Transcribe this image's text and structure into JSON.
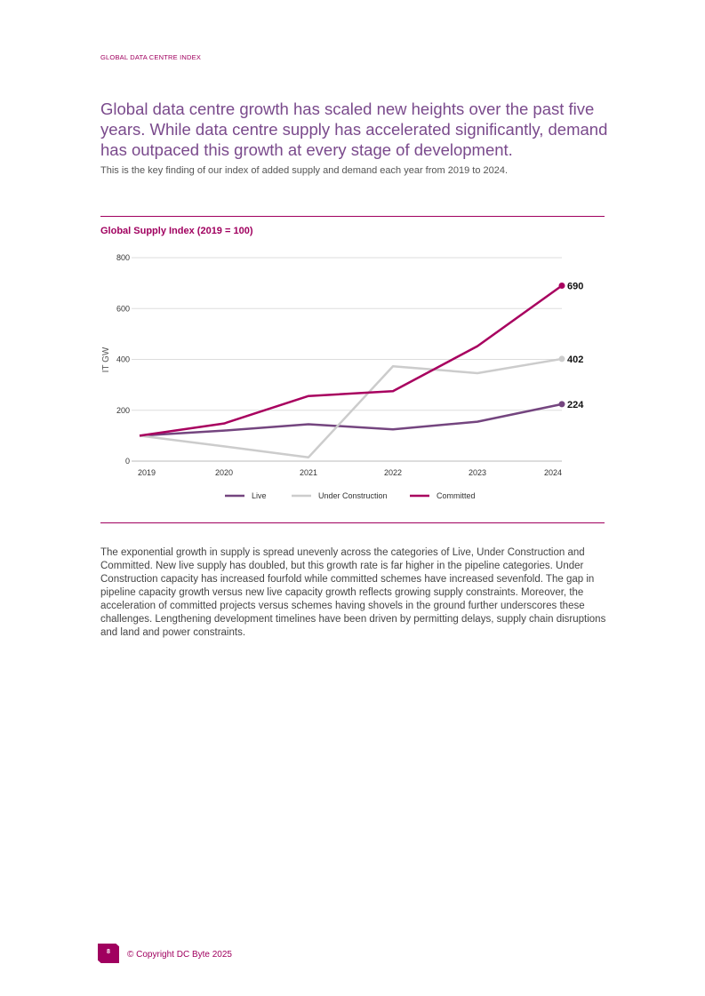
{
  "header": {
    "section": "GLOBAL DATA CENTRE INDEX"
  },
  "headline": "Global data centre growth has scaled new heights over the past five years. While data centre supply has accelerated significantly, demand has outpaced this growth at every stage of development.",
  "subtitle": "This is the key finding of our index of added supply and demand each year from 2019 to 2024.",
  "body": "The exponential growth in supply is spread unevenly across the categories of Live, Under Construction and Committed. New live supply has doubled, but this growth rate is far higher in the pipeline categories. Under Construction capacity has increased fourfold while committed schemes have increased sevenfold. The gap in pipeline capacity growth versus new live capacity growth reflects growing supply constraints. Moreover, the acceleration of committed projects versus schemes having shovels in the ground further underscores these challenges. Lengthening development timelines have been driven by permitting delays, supply chain disruptions and land and power constraints.",
  "footer": {
    "page": "8",
    "copyright": "© Copyright DC Byte 2025"
  },
  "chart_data": {
    "type": "line",
    "title": "Global Supply Index (2019 = 100)",
    "xlabel": "",
    "ylabel": "IT GW",
    "x": [
      "2019",
      "2020",
      "2021",
      "2022",
      "2023",
      "2024"
    ],
    "ylim": [
      0,
      800
    ],
    "yticks": [
      0,
      200,
      400,
      600,
      800
    ],
    "grid": true,
    "legend": "bottom",
    "series": [
      {
        "name": "Live",
        "color": "#74457f",
        "values": [
          100,
          120,
          145,
          125,
          155,
          224
        ],
        "end_label": "224"
      },
      {
        "name": "Under Construction",
        "color": "#cccccc",
        "values": [
          100,
          58,
          15,
          373,
          346,
          402
        ],
        "end_label": "402"
      },
      {
        "name": "Committed",
        "color": "#a8005f",
        "values": [
          100,
          148,
          256,
          275,
          452,
          690
        ],
        "end_label": "690"
      }
    ]
  }
}
